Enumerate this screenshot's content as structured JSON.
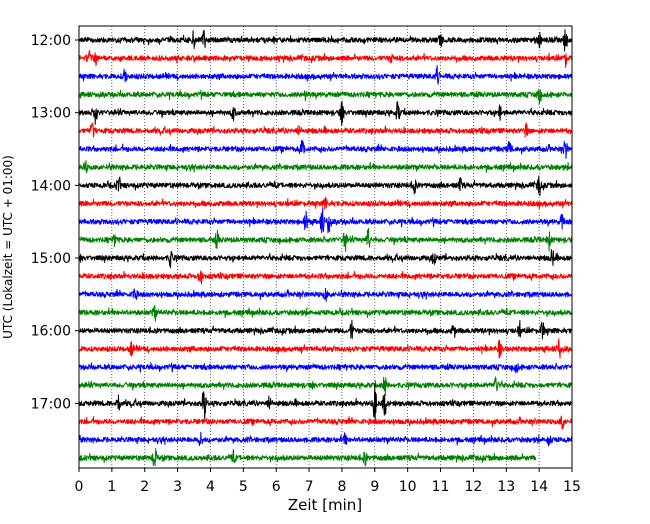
{
  "chart_data": {
    "type": "line",
    "xlabel": "Zeit  [min]",
    "ylabel": "UTC (Lokalzeit = UTC + 01:00)",
    "xlim": [
      0,
      15
    ],
    "x_ticks": [
      0,
      1,
      2,
      3,
      4,
      5,
      6,
      7,
      8,
      9,
      10,
      11,
      12,
      13,
      14,
      15
    ],
    "y_ticks": [
      {
        "label": "12:00",
        "trace": 0
      },
      {
        "label": "13:00",
        "trace": 4
      },
      {
        "label": "14:00",
        "trace": 8
      },
      {
        "label": "15:00",
        "trace": 12
      },
      {
        "label": "16:00",
        "trace": 16
      },
      {
        "label": "17:00",
        "trace": 20
      }
    ],
    "grid": "vertical dotted at each minute",
    "color_cycle": [
      "#000000",
      "#ff0000",
      "#0000ff",
      "#008000"
    ],
    "series": [
      {
        "start": "12:00",
        "color": "#000000",
        "bursts": [
          {
            "t": 3.5,
            "amp": 10
          },
          {
            "t": 3.8,
            "amp": 9
          },
          {
            "t": 11.0,
            "amp": 6
          },
          {
            "t": 14.0,
            "amp": 8
          },
          {
            "t": 14.8,
            "amp": 12
          }
        ]
      },
      {
        "start": "12:15",
        "color": "#ff0000",
        "bursts": [
          {
            "t": 0.3,
            "amp": 9
          },
          {
            "t": 0.5,
            "amp": 7
          },
          {
            "t": 9.5,
            "amp": 4
          },
          {
            "t": 14.8,
            "amp": 7
          }
        ]
      },
      {
        "start": "12:30",
        "color": "#0000ff",
        "bursts": [
          {
            "t": 1.4,
            "amp": 7
          },
          {
            "t": 10.9,
            "amp": 8
          }
        ]
      },
      {
        "start": "12:45",
        "color": "#008000",
        "bursts": [
          {
            "t": 6.9,
            "amp": 5
          },
          {
            "t": 14.0,
            "amp": 9
          }
        ]
      },
      {
        "start": "13:00",
        "color": "#000000",
        "bursts": [
          {
            "t": 0.5,
            "amp": 10
          },
          {
            "t": 4.7,
            "amp": 7
          },
          {
            "t": 8.0,
            "amp": 10
          },
          {
            "t": 9.7,
            "amp": 11
          },
          {
            "t": 12.8,
            "amp": 7
          }
        ]
      },
      {
        "start": "13:15",
        "color": "#ff0000",
        "bursts": [
          {
            "t": 0.4,
            "amp": 9
          },
          {
            "t": 6.7,
            "amp": 6
          },
          {
            "t": 13.6,
            "amp": 6
          }
        ]
      },
      {
        "start": "13:30",
        "color": "#0000ff",
        "bursts": [
          {
            "t": 6.8,
            "amp": 9
          },
          {
            "t": 13.1,
            "amp": 8
          },
          {
            "t": 14.8,
            "amp": 9
          }
        ]
      },
      {
        "start": "13:45",
        "color": "#008000",
        "bursts": [
          {
            "t": 0.2,
            "amp": 5
          }
        ]
      },
      {
        "start": "14:00",
        "color": "#000000",
        "bursts": [
          {
            "t": 1.2,
            "amp": 9
          },
          {
            "t": 10.2,
            "amp": 8
          },
          {
            "t": 11.6,
            "amp": 6
          },
          {
            "t": 14.0,
            "amp": 10
          }
        ]
      },
      {
        "start": "14:15",
        "color": "#ff0000",
        "bursts": [
          {
            "t": 7.5,
            "amp": 6
          }
        ]
      },
      {
        "start": "14:30",
        "color": "#0000ff",
        "bursts": [
          {
            "t": 6.9,
            "amp": 10
          },
          {
            "t": 7.4,
            "amp": 14
          },
          {
            "t": 7.6,
            "amp": 12
          },
          {
            "t": 14.7,
            "amp": 9
          }
        ]
      },
      {
        "start": "14:45",
        "color": "#008000",
        "bursts": [
          {
            "t": 1.1,
            "amp": 6
          },
          {
            "t": 4.2,
            "amp": 8
          },
          {
            "t": 8.1,
            "amp": 11
          },
          {
            "t": 8.8,
            "amp": 10
          },
          {
            "t": 14.3,
            "amp": 9
          }
        ]
      },
      {
        "start": "15:00",
        "color": "#000000",
        "bursts": [
          {
            "t": 2.8,
            "amp": 10
          },
          {
            "t": 10.8,
            "amp": 6
          },
          {
            "t": 14.4,
            "amp": 8
          }
        ]
      },
      {
        "start": "15:15",
        "color": "#ff0000",
        "bursts": [
          {
            "t": 3.7,
            "amp": 10
          }
        ]
      },
      {
        "start": "15:30",
        "color": "#0000ff",
        "bursts": [
          {
            "t": 1.7,
            "amp": 9
          },
          {
            "t": 7.5,
            "amp": 6
          }
        ]
      },
      {
        "start": "15:45",
        "color": "#008000",
        "bursts": [
          {
            "t": 2.3,
            "amp": 7
          }
        ]
      },
      {
        "start": "16:00",
        "color": "#000000",
        "bursts": [
          {
            "t": 8.3,
            "amp": 9
          },
          {
            "t": 11.4,
            "amp": 7
          },
          {
            "t": 13.4,
            "amp": 6
          },
          {
            "t": 14.1,
            "amp": 10
          }
        ]
      },
      {
        "start": "16:15",
        "color": "#ff0000",
        "bursts": [
          {
            "t": 1.6,
            "amp": 7
          },
          {
            "t": 12.8,
            "amp": 8
          },
          {
            "t": 14.6,
            "amp": 12
          }
        ]
      },
      {
        "start": "16:30",
        "color": "#0000ff",
        "bursts": [
          {
            "t": 13.3,
            "amp": 5
          }
        ]
      },
      {
        "start": "16:45",
        "color": "#008000",
        "bursts": [
          {
            "t": 9.3,
            "amp": 10
          },
          {
            "t": 12.7,
            "amp": 11
          }
        ]
      },
      {
        "start": "17:00",
        "color": "#000000",
        "bursts": [
          {
            "t": 1.2,
            "amp": 9
          },
          {
            "t": 3.8,
            "amp": 18
          },
          {
            "t": 5.8,
            "amp": 8
          },
          {
            "t": 9.0,
            "amp": 18
          },
          {
            "t": 9.3,
            "amp": 14
          }
        ]
      },
      {
        "start": "17:15",
        "color": "#ff0000",
        "bursts": [
          {
            "t": 14.7,
            "amp": 8
          }
        ]
      },
      {
        "start": "17:30",
        "color": "#0000ff",
        "bursts": [
          {
            "t": 3.7,
            "amp": 6
          },
          {
            "t": 8.1,
            "amp": 5
          },
          {
            "t": 14.3,
            "amp": 7
          }
        ]
      },
      {
        "start": "17:45",
        "color": "#008000",
        "end": 13.9,
        "bursts": [
          {
            "t": 2.3,
            "amp": 12
          },
          {
            "t": 4.7,
            "amp": 5
          },
          {
            "t": 8.7,
            "amp": 6
          }
        ]
      }
    ]
  }
}
